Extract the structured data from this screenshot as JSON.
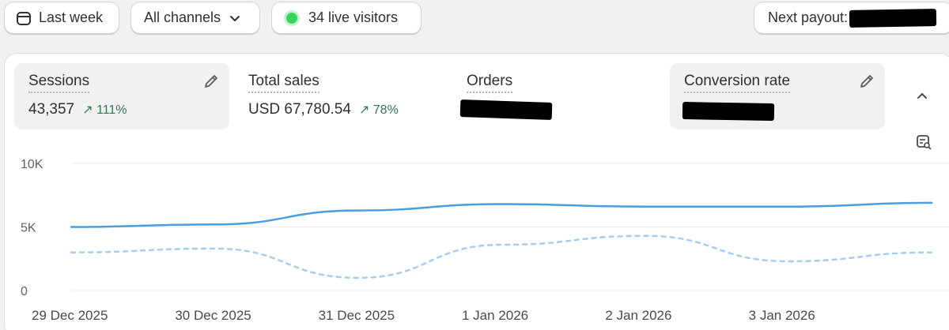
{
  "filters": {
    "date_range": "Last week",
    "channels": "All channels",
    "live_visitors": "34 live visitors",
    "next_payout": "Next payout:"
  },
  "metrics": [
    {
      "label": "Sessions",
      "value": "43,357",
      "change": "111%"
    },
    {
      "label": "Total sales",
      "value": "USD 67,780.54",
      "change": "78%"
    },
    {
      "label": "Orders",
      "value": ""
    },
    {
      "label": "Conversion rate",
      "value": ""
    }
  ],
  "colors": {
    "accent_line": "#4a9ee0",
    "comparison_line": "#a7cdee",
    "live_dot": "#36d65a",
    "positive": "#2e7d4f"
  },
  "chart_data": {
    "type": "line",
    "x": [
      "29 Dec 2025",
      "30 Dec 2025",
      "31 Dec 2025",
      "1 Jan 2026",
      "2 Jan 2026",
      "3 Jan 2026",
      ""
    ],
    "y_ticks": [
      "10K",
      "5K",
      "0"
    ],
    "ylim": [
      0,
      10000
    ],
    "grid": true,
    "series": [
      {
        "style": "solid",
        "values": [
          5000,
          5200,
          6300,
          6800,
          6600,
          6600,
          6900
        ]
      },
      {
        "style": "dashed",
        "values": [
          3000,
          3300,
          1000,
          3600,
          4300,
          2300,
          3000
        ]
      }
    ]
  }
}
